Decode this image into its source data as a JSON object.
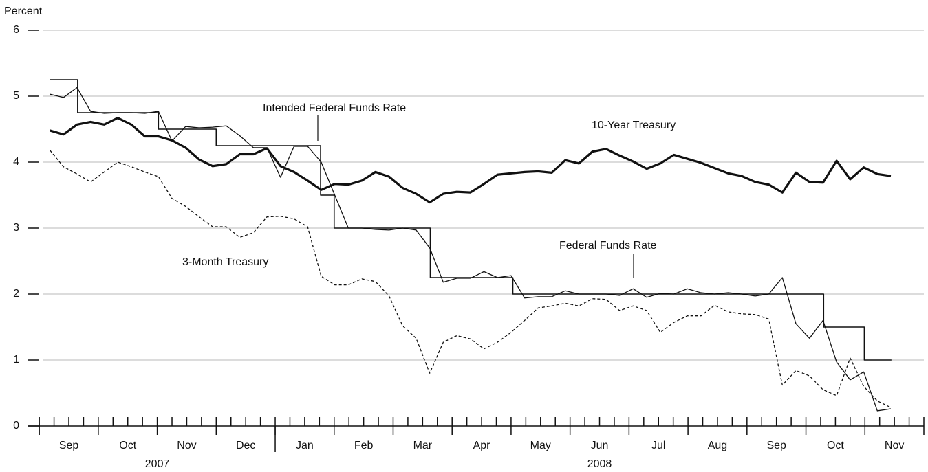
{
  "chart_data": {
    "type": "line",
    "y_label": "Percent",
    "ylim": [
      0,
      6
    ],
    "yticks": [
      0,
      1,
      2,
      3,
      4,
      5,
      6
    ],
    "grid": true,
    "xlim": [
      -0.2,
      15
    ],
    "x_month_labels": [
      {
        "value": 0.5,
        "label": "Sep"
      },
      {
        "value": 1.5,
        "label": "Oct"
      },
      {
        "value": 2.5,
        "label": "Nov"
      },
      {
        "value": 3.5,
        "label": "Dec"
      },
      {
        "value": 4.5,
        "label": "Jan"
      },
      {
        "value": 5.5,
        "label": "Feb"
      },
      {
        "value": 6.5,
        "label": "Mar"
      },
      {
        "value": 7.5,
        "label": "Apr"
      },
      {
        "value": 8.5,
        "label": "May"
      },
      {
        "value": 9.5,
        "label": "Jun"
      },
      {
        "value": 10.5,
        "label": "Jul"
      },
      {
        "value": 11.5,
        "label": "Aug"
      },
      {
        "value": 12.5,
        "label": "Sep"
      },
      {
        "value": 13.5,
        "label": "Oct"
      },
      {
        "value": 14.5,
        "label": "Nov"
      }
    ],
    "x_year_labels": [
      {
        "value": 2,
        "label": "2007"
      },
      {
        "value": 9.5,
        "label": "2008"
      }
    ],
    "xticks": [
      0,
      1,
      2,
      3,
      4,
      5,
      6,
      7,
      8,
      9,
      10,
      11,
      12,
      13,
      14,
      15
    ],
    "x_minor_ticks": [
      0.25,
      0.5,
      0.75,
      1.25,
      1.5,
      1.75,
      2.25,
      2.5,
      2.75,
      3.25,
      3.5,
      3.75,
      4.25,
      4.5,
      4.75,
      5.25,
      5.5,
      5.75,
      6.25,
      6.5,
      6.75,
      7.25,
      7.5,
      7.75,
      8.25,
      8.5,
      8.75,
      9.25,
      9.5,
      9.75,
      10.25,
      10.5,
      10.75,
      11.25,
      11.5,
      11.75,
      12.25,
      12.5,
      12.75,
      13.25,
      13.5,
      13.75,
      14.25,
      14.5,
      14.75
    ],
    "x_year_breaks": [
      4
    ],
    "x": [
      0.18,
      0.41,
      0.64,
      0.87,
      1.1,
      1.33,
      1.56,
      1.79,
      2.02,
      2.25,
      2.48,
      2.71,
      2.94,
      3.17,
      3.4,
      3.63,
      3.86,
      4.09,
      4.32,
      4.55,
      4.78,
      5.01,
      5.24,
      5.47,
      5.7,
      5.93,
      6.16,
      6.39,
      6.62,
      6.85,
      7.08,
      7.31,
      7.54,
      7.77,
      8.0,
      8.23,
      8.46,
      8.69,
      8.92,
      9.15,
      9.38,
      9.61,
      9.84,
      10.07,
      10.3,
      10.53,
      10.76,
      10.99,
      11.22,
      11.45,
      11.68,
      11.91,
      12.14,
      12.37,
      12.6,
      12.83,
      13.06,
      13.29,
      13.52,
      13.75,
      13.98,
      14.21,
      14.44
    ],
    "series": [
      {
        "name": "Intended Federal Funds Rate",
        "color": "#111111",
        "style": "step",
        "x": [
          0.18,
          0.65,
          2.02,
          3.0,
          4.77,
          5.0,
          6.63,
          8.03,
          13.3,
          13.99,
          14.45
        ],
        "values": [
          5.25,
          4.75,
          4.5,
          4.25,
          3.5,
          3.0,
          2.25,
          2.0,
          1.5,
          1.0,
          1.0
        ]
      },
      {
        "name": "10-Year Treasury",
        "color": "#111111",
        "style": "thick",
        "values": [
          4.48,
          4.42,
          4.57,
          4.61,
          4.57,
          4.67,
          4.57,
          4.39,
          4.39,
          4.33,
          4.22,
          4.04,
          3.94,
          3.97,
          4.12,
          4.12,
          4.21,
          3.94,
          3.85,
          3.72,
          3.58,
          3.67,
          3.66,
          3.72,
          3.85,
          3.78,
          3.61,
          3.52,
          3.39,
          3.52,
          3.55,
          3.54,
          3.67,
          3.81,
          3.83,
          3.85,
          3.86,
          3.84,
          4.03,
          3.98,
          4.16,
          4.2,
          4.1,
          4.01,
          3.9,
          3.98,
          4.11,
          4.05,
          3.99,
          3.91,
          3.83,
          3.79,
          3.7,
          3.66,
          3.54,
          3.84,
          3.7,
          3.69,
          4.02,
          3.74,
          3.92,
          3.82,
          3.79
        ]
      },
      {
        "name": "Federal Funds Rate",
        "color": "#111111",
        "style": "thin",
        "values": [
          5.03,
          4.98,
          5.13,
          4.77,
          4.74,
          4.75,
          4.75,
          4.74,
          4.77,
          4.32,
          4.54,
          4.52,
          4.53,
          4.55,
          4.4,
          4.22,
          4.22,
          3.77,
          4.24,
          4.24,
          4.0,
          3.5,
          3.0,
          3.0,
          2.98,
          2.97,
          3.0,
          2.97,
          2.7,
          2.18,
          2.24,
          2.24,
          2.34,
          2.25,
          2.28,
          1.94,
          1.96,
          1.96,
          2.05,
          2.0,
          2.0,
          2.0,
          1.98,
          2.08,
          1.95,
          2.01,
          2.0,
          2.08,
          2.02,
          2.0,
          2.02,
          2.0,
          1.97,
          2.0,
          2.25,
          1.55,
          1.33,
          1.6,
          0.97,
          0.7,
          0.82,
          0.23,
          0.26
        ]
      },
      {
        "name": "3-Month Treasury",
        "color": "#111111",
        "style": "dashed",
        "values": [
          4.18,
          3.93,
          3.82,
          3.7,
          3.85,
          4.0,
          3.93,
          3.85,
          3.78,
          3.45,
          3.33,
          3.17,
          3.02,
          3.02,
          2.86,
          2.93,
          3.17,
          3.18,
          3.14,
          3.02,
          2.27,
          2.14,
          2.14,
          2.23,
          2.19,
          1.97,
          1.52,
          1.33,
          0.8,
          1.27,
          1.37,
          1.32,
          1.17,
          1.27,
          1.42,
          1.6,
          1.79,
          1.82,
          1.86,
          1.82,
          1.93,
          1.92,
          1.75,
          1.82,
          1.75,
          1.42,
          1.57,
          1.67,
          1.67,
          1.83,
          1.73,
          1.7,
          1.69,
          1.62,
          0.62,
          0.84,
          0.76,
          0.55,
          0.46,
          1.03,
          0.6,
          0.38,
          0.28
        ]
      }
    ]
  }
}
